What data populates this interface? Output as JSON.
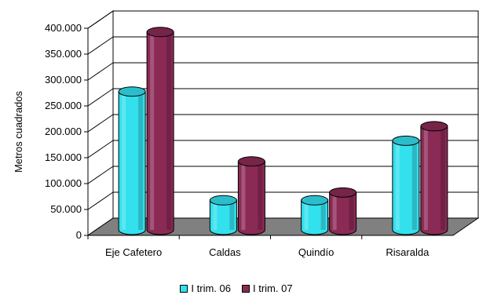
{
  "chart_data": {
    "type": "bar",
    "categories": [
      "Eje Cafetero",
      "Caldas",
      "Quindío",
      "Risaralda"
    ],
    "series": [
      {
        "name": "I trim. 06",
        "values": [
          255000,
          45000,
          45000,
          160000
        ],
        "color": "#33e0ee"
      },
      {
        "name": "I trim. 07",
        "values": [
          370000,
          120000,
          60000,
          188000
        ],
        "color": "#8b2a55"
      }
    ],
    "ylabel": "Metros cuadrados",
    "ylim": [
      0,
      400000
    ],
    "yticks": [
      "0",
      "50.000",
      "100.000",
      "150.000",
      "200.000",
      "250.000",
      "300.000",
      "350.000",
      "400.000"
    ],
    "grid": true,
    "legend_position": "bottom",
    "floor_color": "#808080"
  }
}
